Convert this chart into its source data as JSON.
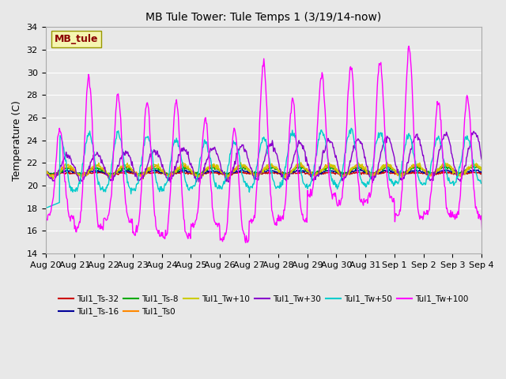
{
  "title": "MB Tule Tower: Tule Temps 1 (3/19/14-now)",
  "ylabel": "Temperature (C)",
  "ylim": [
    14,
    34
  ],
  "yticks": [
    14,
    16,
    18,
    20,
    22,
    24,
    26,
    28,
    30,
    32,
    34
  ],
  "bg_color": "#e8e8e8",
  "plot_bg_color": "#e8e8e8",
  "station_label": "MB_tule",
  "station_label_color": "#8b0000",
  "station_box_facecolor": "#f5f5b0",
  "station_box_edgecolor": "#999900",
  "legend_entries": [
    {
      "label": "Tul1_Ts-32",
      "color": "#cc0000"
    },
    {
      "label": "Tul1_Ts-16",
      "color": "#000099"
    },
    {
      "label": "Tul1_Ts-8",
      "color": "#00aa00"
    },
    {
      "label": "Tul1_Ts0",
      "color": "#ff8800"
    },
    {
      "label": "Tul1_Tw+10",
      "color": "#cccc00"
    },
    {
      "label": "Tul1_Tw+30",
      "color": "#8800cc"
    },
    {
      "label": "Tul1_Tw+50",
      "color": "#00cccc"
    },
    {
      "label": "Tul1_Tw+100",
      "color": "#ff00ff"
    }
  ],
  "x_tick_labels": [
    "Aug 20",
    "Aug 21",
    "Aug 22",
    "Aug 23",
    "Aug 24",
    "Aug 25",
    "Aug 26",
    "Aug 27",
    "Aug 28",
    "Aug 29",
    "Aug 30",
    "Aug 31",
    "Sep 1",
    "Sep 2",
    "Sep 3",
    "Sep 4"
  ],
  "num_days": 16,
  "figwidth": 6.4,
  "figheight": 4.8,
  "dpi": 100,
  "grid_color": "white",
  "grid_lw": 0.8,
  "line_width": 1.0,
  "title_fontsize": 10,
  "ylabel_fontsize": 9,
  "tick_fontsize": 8,
  "legend_fontsize": 7.5,
  "station_fontsize": 9
}
